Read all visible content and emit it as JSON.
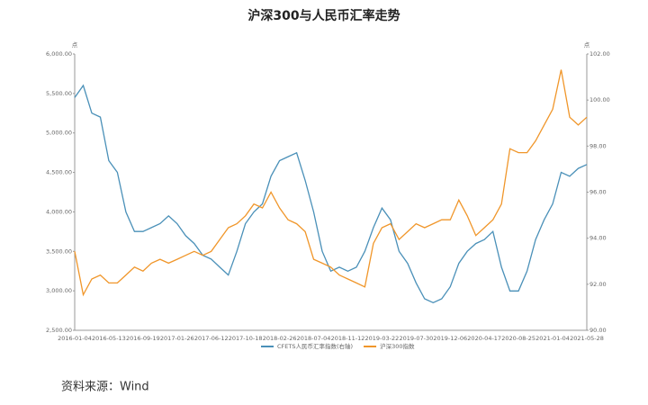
{
  "chart_data": {
    "type": "line",
    "title": "沪深300与人民币汇率走势",
    "ylabel": "点",
    "y2label": "点",
    "source": "资料来源：Wind",
    "categories": [
      "2016-01-04",
      null,
      null,
      null,
      "2016-05-13",
      null,
      null,
      null,
      "2016-09-19",
      null,
      null,
      null,
      "2017-01-26",
      null,
      null,
      null,
      "2017-06-12",
      null,
      null,
      null,
      "2017-10-18",
      null,
      null,
      null,
      "2018-02-26",
      null,
      null,
      null,
      "2018-07-04",
      null,
      null,
      null,
      "2018-11-12",
      null,
      null,
      null,
      "2019-03-22",
      null,
      null,
      null,
      "2019-07-30",
      null,
      null,
      null,
      "2019-12-06",
      null,
      null,
      null,
      "2020-04-17",
      null,
      null,
      null,
      "2020-08-25",
      null,
      null,
      null,
      "2021-01-04",
      null,
      null,
      null,
      "2021-05-28"
    ],
    "ylim": [
      2500,
      6000
    ],
    "yticks": [
      {
        "value": 2500,
        "label": "2,500.00"
      },
      {
        "value": 3000,
        "label": "3,000.00"
      },
      {
        "value": 3500,
        "label": "3,500.00"
      },
      {
        "value": 4000,
        "label": "4,000.00"
      },
      {
        "value": 4500,
        "label": "4,500.00"
      },
      {
        "value": 5000,
        "label": "5,000.00"
      },
      {
        "value": 5500,
        "label": "5,500.00"
      },
      {
        "value": 6000,
        "label": "6,000.00"
      }
    ],
    "y2lim": [
      90,
      102
    ],
    "y2ticks": [
      {
        "value": 90,
        "label": "90.00"
      },
      {
        "value": 92,
        "label": "92.00"
      },
      {
        "value": 94,
        "label": "94.00"
      },
      {
        "value": 96,
        "label": "96.00"
      },
      {
        "value": 98,
        "label": "98.00"
      },
      {
        "value": 100,
        "label": "100.00"
      },
      {
        "value": 102,
        "label": "102.00"
      }
    ],
    "grid": false,
    "series": [
      {
        "name": "CFETS人民币汇率指数(右轴)",
        "color": "#4a90b8",
        "axis": "y2",
        "values": [
          100.11,
          100.63,
          99.43,
          99.26,
          97.37,
          96.86,
          95.14,
          94.29,
          94.29,
          94.46,
          94.63,
          94.97,
          94.63,
          94.11,
          93.77,
          93.26,
          93.09,
          92.74,
          92.4,
          93.43,
          94.63,
          95.14,
          95.49,
          96.69,
          97.37,
          97.54,
          97.71,
          96.51,
          95.14,
          93.43,
          92.57,
          92.74,
          92.57,
          92.74,
          93.43,
          94.46,
          95.31,
          94.8,
          93.43,
          92.91,
          92.06,
          91.37,
          91.2,
          91.37,
          91.89,
          92.91,
          93.43,
          93.77,
          93.94,
          94.29,
          92.74,
          91.71,
          91.71,
          92.57,
          93.94,
          94.8,
          95.49,
          96.86,
          96.69,
          97.03,
          97.2
        ]
      },
      {
        "name": "沪深300指数",
        "color": "#f0962a",
        "values": [
          3500,
          2950,
          3150,
          3200,
          3100,
          3100,
          3200,
          3300,
          3250,
          3350,
          3400,
          3350,
          3400,
          3450,
          3500,
          3450,
          3500,
          3650,
          3800,
          3850,
          3950,
          4100,
          4050,
          4250,
          4050,
          3900,
          3850,
          3750,
          3400,
          3350,
          3300,
          3200,
          3150,
          3100,
          3050,
          3600,
          3800,
          3850,
          3650,
          3750,
          3850,
          3800,
          3850,
          3900,
          3900,
          4150,
          3950,
          3700,
          3800,
          3900,
          4100,
          4800,
          4750,
          4750,
          4900,
          5100,
          5300,
          5800,
          5200,
          5100,
          5200
        ]
      }
    ]
  }
}
